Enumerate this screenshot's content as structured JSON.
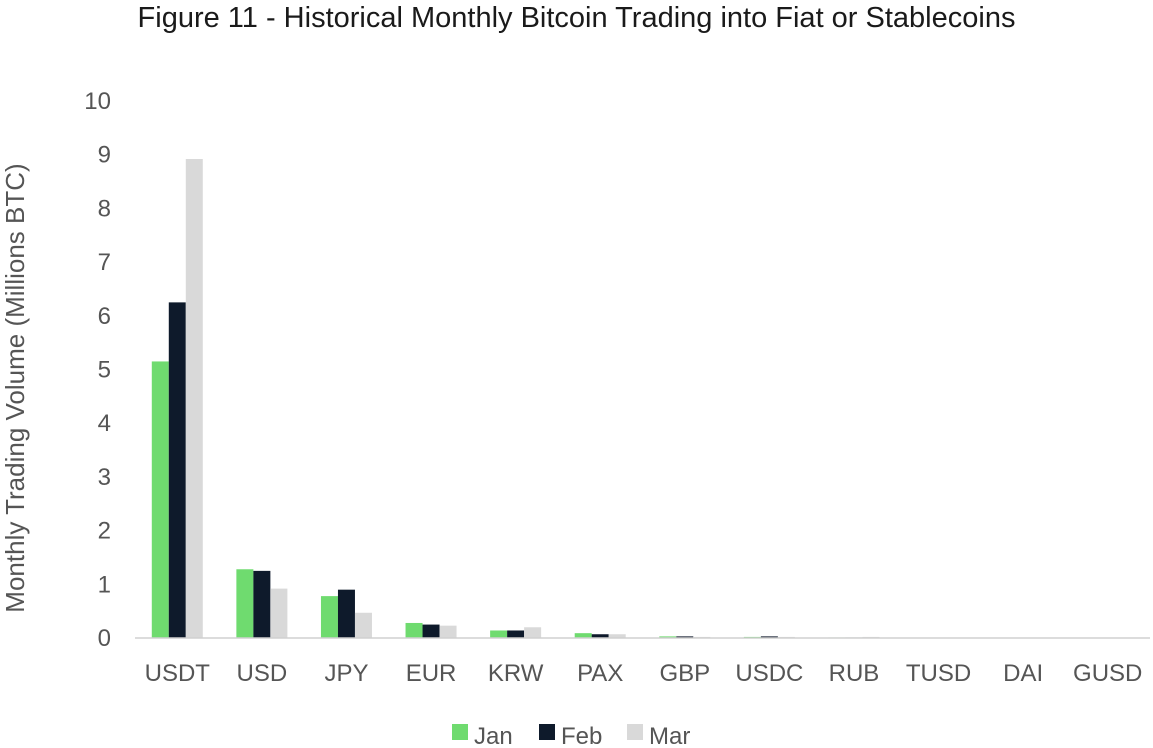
{
  "chart_data": {
    "type": "bar",
    "title": "Figure 11 - Historical Monthly Bitcoin Trading into Fiat or Stablecoins",
    "xlabel": "",
    "ylabel": "Monthly Trading Volume (Millions BTC)",
    "ylim": [
      0,
      10
    ],
    "yticks": [
      0,
      1,
      2,
      3,
      4,
      5,
      6,
      7,
      8,
      9,
      10
    ],
    "grid": false,
    "legend_position": "bottom",
    "categories": [
      "USDT",
      "USD",
      "JPY",
      "EUR",
      "KRW",
      "PAX",
      "GBP",
      "USDC",
      "RUB",
      "TUSD",
      "DAI",
      "GUSD"
    ],
    "series": [
      {
        "name": "Jan",
        "color": "#6fdb6f",
        "values": [
          5.15,
          1.28,
          0.78,
          0.28,
          0.14,
          0.09,
          0.03,
          0.02,
          0.01,
          0.005,
          0.003,
          0.002
        ]
      },
      {
        "name": "Feb",
        "color": "#0e1a2b",
        "values": [
          6.25,
          1.25,
          0.9,
          0.25,
          0.14,
          0.07,
          0.03,
          0.03,
          0.01,
          0.005,
          0.003,
          0.002
        ]
      },
      {
        "name": "Mar",
        "color": "#d9d9d9",
        "values": [
          8.92,
          0.92,
          0.47,
          0.23,
          0.2,
          0.07,
          0.02,
          0.02,
          0.02,
          0.005,
          0.003,
          0.002
        ]
      }
    ]
  }
}
